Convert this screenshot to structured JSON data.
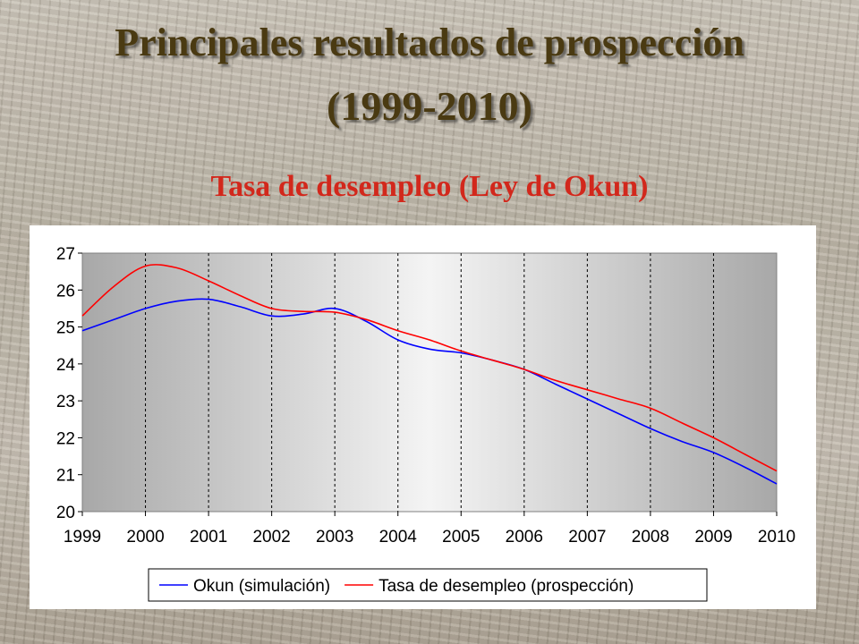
{
  "slide": {
    "title_line1": "Principales resultados de prospección",
    "title_line2": "(1999-2010)",
    "subtitle": "Tasa de desempleo (Ley de Okun)"
  },
  "chart_data": {
    "type": "line",
    "x": [
      1999,
      1999.5,
      2000,
      2000.5,
      2001,
      2001.5,
      2002,
      2002.5,
      2003,
      2003.5,
      2004,
      2004.5,
      2005,
      2005.5,
      2006,
      2006.5,
      2007,
      2007.5,
      2008,
      2008.5,
      2009,
      2009.5,
      2010
    ],
    "xlim": [
      1999,
      2010
    ],
    "ylim": [
      20,
      27
    ],
    "x_ticks": [
      "1999",
      "2000",
      "2001",
      "2002",
      "2003",
      "2004",
      "2005",
      "2006",
      "2007",
      "2008",
      "2009",
      "2010"
    ],
    "y_ticks": [
      "20",
      "21",
      "22",
      "23",
      "24",
      "25",
      "26",
      "27"
    ],
    "series": [
      {
        "name": "Okun (simulación)",
        "color": "#0000ff",
        "values": [
          24.9,
          25.2,
          25.5,
          25.7,
          25.75,
          25.55,
          25.3,
          25.35,
          25.5,
          25.15,
          24.65,
          24.4,
          24.3,
          24.1,
          23.85,
          23.45,
          23.05,
          22.65,
          22.25,
          21.9,
          21.6,
          21.2,
          20.75
        ]
      },
      {
        "name": "Tasa de desempleo (prospección)",
        "color": "#ff0000",
        "values": [
          25.3,
          26.1,
          26.65,
          26.6,
          26.25,
          25.85,
          25.5,
          25.42,
          25.4,
          25.2,
          24.9,
          24.65,
          24.35,
          24.1,
          23.85,
          23.55,
          23.3,
          23.05,
          22.8,
          22.4,
          22.0,
          21.55,
          21.1
        ]
      }
    ],
    "grid": "vertical-dashed",
    "legend_position": "bottom"
  }
}
